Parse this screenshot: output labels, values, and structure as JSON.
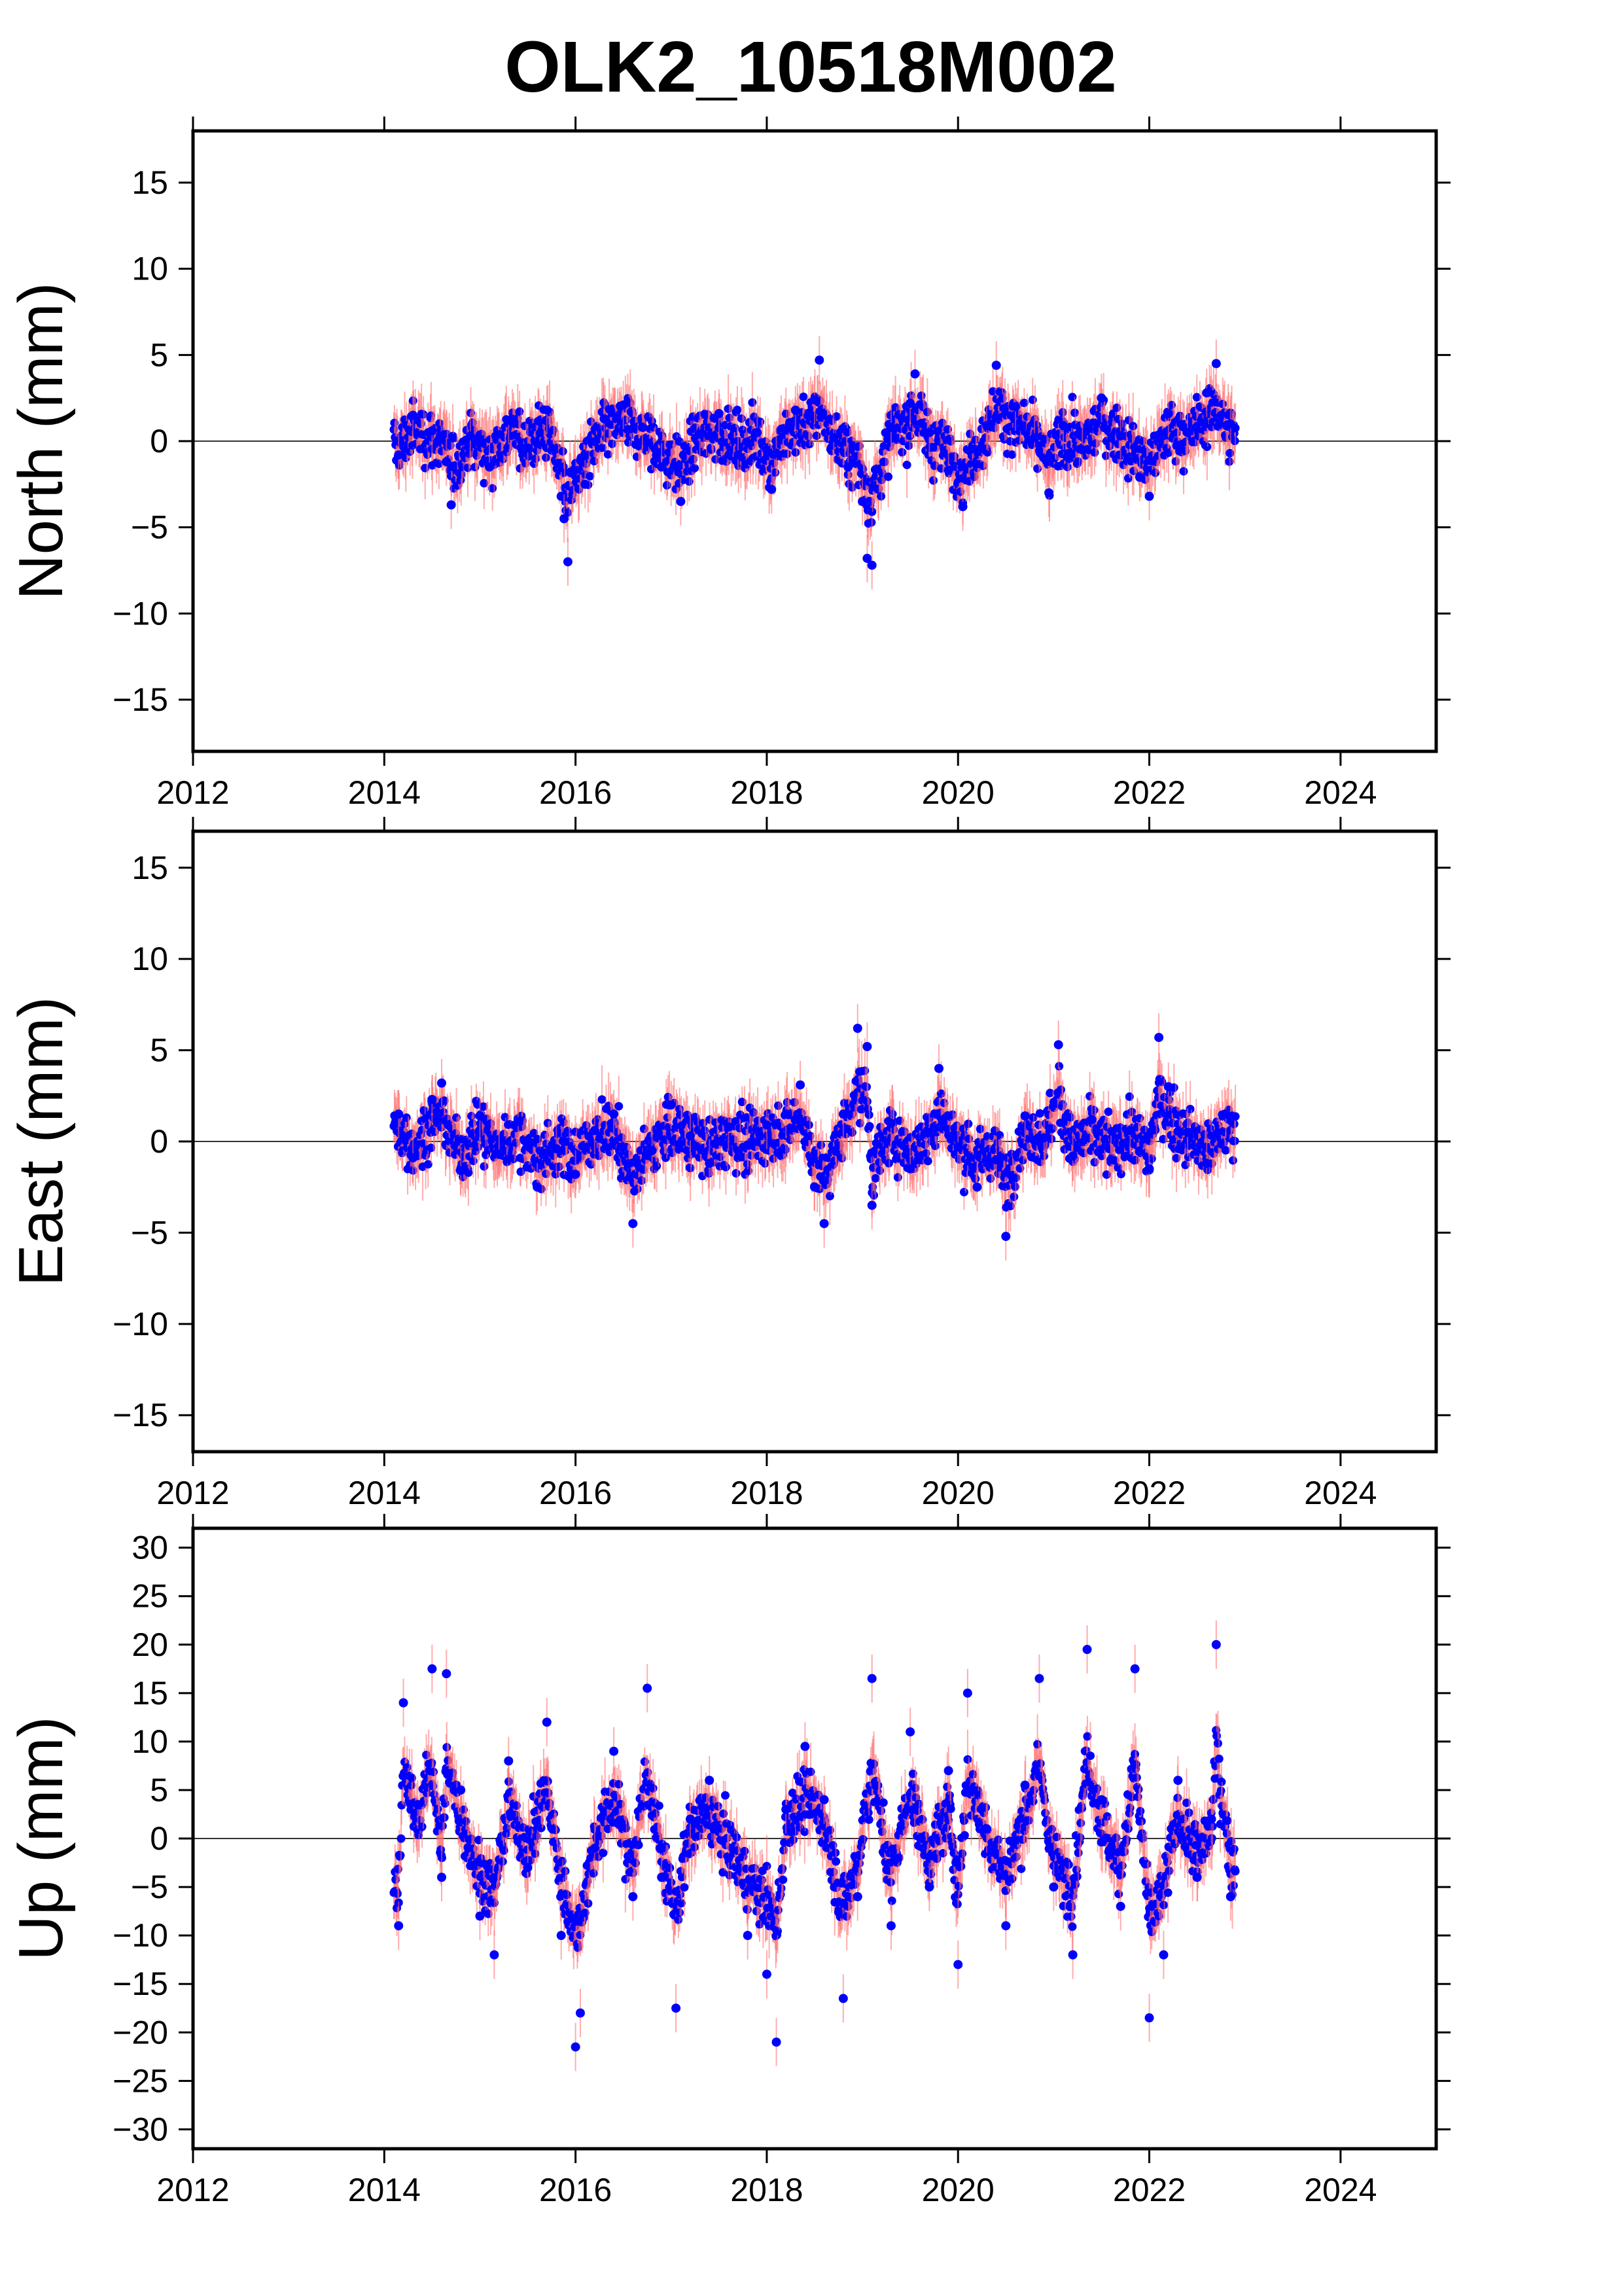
{
  "chart_data": {
    "title": "OLK2_10518M002",
    "type": "scatter",
    "x_ticks": [
      "2012",
      "2014",
      "2016",
      "2018",
      "2020",
      "2022",
      "2024"
    ],
    "xlim": [
      2012,
      2025
    ],
    "data_span": [
      2014.1,
      2022.9
    ],
    "colors": {
      "points": "#0000ff",
      "error_bars": "#ff6a6a",
      "zero_line": "#333333"
    },
    "panels": [
      {
        "ylabel": "North (mm)",
        "ylim": [
          -18,
          18
        ],
        "y_ticks": [
          "15",
          "10",
          "5",
          "0",
          "−5",
          "−10",
          "−15"
        ],
        "y_tick_values": [
          15,
          10,
          5,
          0,
          -5,
          -10,
          -15
        ],
        "points": [
          [
            2014.15,
            -0.8
          ],
          [
            2014.3,
            1.5
          ],
          [
            2014.5,
            0.6
          ],
          [
            2014.65,
            -1.2
          ],
          [
            2014.7,
            -3.7
          ],
          [
            2014.9,
            0.3
          ],
          [
            2015.1,
            -1.5
          ],
          [
            2015.3,
            1.2
          ],
          [
            2015.5,
            -0.4
          ],
          [
            2015.7,
            1.8
          ],
          [
            2015.85,
            -3.2
          ],
          [
            2015.88,
            -4.5
          ],
          [
            2015.92,
            -7.0
          ],
          [
            2016.1,
            -2.5
          ],
          [
            2016.3,
            1.3
          ],
          [
            2016.5,
            2.1
          ],
          [
            2016.7,
            0.8
          ],
          [
            2016.9,
            -1.5
          ],
          [
            2017.1,
            -3.5
          ],
          [
            2017.3,
            0.4
          ],
          [
            2017.5,
            1.6
          ],
          [
            2017.7,
            -0.8
          ],
          [
            2017.9,
            0.5
          ],
          [
            2018.05,
            -2.8
          ],
          [
            2018.1,
            -0.7
          ],
          [
            2018.3,
            1.8
          ],
          [
            2018.5,
            2.4
          ],
          [
            2018.55,
            4.7
          ],
          [
            2018.7,
            0.2
          ],
          [
            2018.85,
            -1.5
          ],
          [
            2019.0,
            -3.5
          ],
          [
            2019.05,
            -6.8
          ],
          [
            2019.1,
            -7.2
          ],
          [
            2019.3,
            0.8
          ],
          [
            2019.5,
            2.2
          ],
          [
            2019.55,
            3.9
          ],
          [
            2019.7,
            0.5
          ],
          [
            2019.9,
            -1.7
          ],
          [
            2020.05,
            -3.8
          ],
          [
            2020.3,
            0.9
          ],
          [
            2020.4,
            4.4
          ],
          [
            2020.6,
            2.0
          ],
          [
            2020.8,
            0.2
          ],
          [
            2020.95,
            -3.0
          ],
          [
            2021.1,
            0.9
          ],
          [
            2021.3,
            -0.5
          ],
          [
            2021.5,
            2.5
          ],
          [
            2021.7,
            0.3
          ],
          [
            2021.9,
            -2.1
          ],
          [
            2022.0,
            -3.2
          ],
          [
            2022.2,
            1.6
          ],
          [
            2022.4,
            0.5
          ],
          [
            2022.6,
            2.8
          ],
          [
            2022.7,
            4.5
          ],
          [
            2022.85,
            1.0
          ]
        ]
      },
      {
        "ylabel": "East (mm)",
        "ylim": [
          -17,
          17
        ],
        "y_ticks": [
          "15",
          "10",
          "5",
          "0",
          "−5",
          "−10",
          "−15"
        ],
        "y_tick_values": [
          15,
          10,
          5,
          0,
          -5,
          -10,
          -15
        ],
        "points": [
          [
            2014.15,
            1.5
          ],
          [
            2014.3,
            -0.9
          ],
          [
            2014.5,
            2.3
          ],
          [
            2014.6,
            3.2
          ],
          [
            2014.8,
            -1.6
          ],
          [
            2015.0,
            1.4
          ],
          [
            2015.2,
            -0.7
          ],
          [
            2015.4,
            1.1
          ],
          [
            2015.6,
            -2.5
          ],
          [
            2015.8,
            -0.4
          ],
          [
            2016.0,
            -1.8
          ],
          [
            2016.2,
            0.6
          ],
          [
            2016.4,
            1.5
          ],
          [
            2016.6,
            -4.5
          ],
          [
            2016.8,
            -0.5
          ],
          [
            2017.0,
            2.0
          ],
          [
            2017.2,
            0.3
          ],
          [
            2017.4,
            -1.2
          ],
          [
            2017.6,
            0.8
          ],
          [
            2017.8,
            -0.2
          ],
          [
            2018.0,
            0.9
          ],
          [
            2018.2,
            1.5
          ],
          [
            2018.35,
            3.1
          ],
          [
            2018.5,
            -2.5
          ],
          [
            2018.6,
            -4.5
          ],
          [
            2018.8,
            1.5
          ],
          [
            2018.95,
            6.2
          ],
          [
            2019.05,
            5.2
          ],
          [
            2019.1,
            -3.5
          ],
          [
            2019.3,
            1.0
          ],
          [
            2019.5,
            -1.5
          ],
          [
            2019.7,
            0.5
          ],
          [
            2019.8,
            4.0
          ],
          [
            2020.0,
            -0.3
          ],
          [
            2020.2,
            -2.5
          ],
          [
            2020.4,
            -1.0
          ],
          [
            2020.5,
            -5.2
          ],
          [
            2020.7,
            1.4
          ],
          [
            2020.9,
            0.2
          ],
          [
            2021.05,
            5.3
          ],
          [
            2021.2,
            -0.8
          ],
          [
            2021.4,
            1.2
          ],
          [
            2021.6,
            -1.0
          ],
          [
            2021.8,
            0.6
          ],
          [
            2022.0,
            -1.5
          ],
          [
            2022.1,
            5.7
          ],
          [
            2022.2,
            3.0
          ],
          [
            2022.4,
            0.5
          ],
          [
            2022.6,
            -1.2
          ],
          [
            2022.8,
            1.5
          ]
        ]
      },
      {
        "ylabel": "Up (mm)",
        "ylim": [
          -32,
          32
        ],
        "y_ticks": [
          "30",
          "25",
          "20",
          "15",
          "10",
          "5",
          "0",
          "−5",
          "−10",
          "−15",
          "−20",
          "−25",
          "−30"
        ],
        "y_tick_values": [
          30,
          25,
          20,
          15,
          10,
          5,
          0,
          -5,
          -10,
          -15,
          -20,
          -25,
          -30
        ],
        "points": [
          [
            2014.15,
            -9.0
          ],
          [
            2014.2,
            14.0
          ],
          [
            2014.35,
            3.5
          ],
          [
            2014.5,
            17.5
          ],
          [
            2014.6,
            -4.0
          ],
          [
            2014.65,
            17.0
          ],
          [
            2014.8,
            5.0
          ],
          [
            2015.0,
            -8.0
          ],
          [
            2015.15,
            -12.0
          ],
          [
            2015.3,
            8.0
          ],
          [
            2015.5,
            -3.0
          ],
          [
            2015.7,
            12.0
          ],
          [
            2015.85,
            -10.0
          ],
          [
            2016.0,
            -21.5
          ],
          [
            2016.05,
            -18.0
          ],
          [
            2016.2,
            -1.0
          ],
          [
            2016.4,
            9.0
          ],
          [
            2016.6,
            -6.0
          ],
          [
            2016.75,
            15.5
          ],
          [
            2016.9,
            -4.0
          ],
          [
            2017.05,
            -17.5
          ],
          [
            2017.2,
            2.0
          ],
          [
            2017.4,
            6.0
          ],
          [
            2017.6,
            -2.0
          ],
          [
            2017.8,
            -10.0
          ],
          [
            2018.0,
            -14.0
          ],
          [
            2018.1,
            -21.0
          ],
          [
            2018.2,
            3.0
          ],
          [
            2018.4,
            9.5
          ],
          [
            2018.6,
            4.0
          ],
          [
            2018.8,
            -16.5
          ],
          [
            2018.95,
            -6.0
          ],
          [
            2019.1,
            16.5
          ],
          [
            2019.3,
            -9.0
          ],
          [
            2019.5,
            11.0
          ],
          [
            2019.7,
            -5.0
          ],
          [
            2019.9,
            7.0
          ],
          [
            2020.0,
            -13.0
          ],
          [
            2020.1,
            15.0
          ],
          [
            2020.3,
            1.0
          ],
          [
            2020.5,
            -9.0
          ],
          [
            2020.7,
            5.5
          ],
          [
            2020.85,
            16.5
          ],
          [
            2021.0,
            -5.0
          ],
          [
            2021.2,
            -12.0
          ],
          [
            2021.35,
            19.5
          ],
          [
            2021.5,
            4.0
          ],
          [
            2021.7,
            -7.0
          ],
          [
            2021.85,
            17.5
          ],
          [
            2022.0,
            -18.5
          ],
          [
            2022.15,
            -12.0
          ],
          [
            2022.3,
            6.0
          ],
          [
            2022.5,
            -4.0
          ],
          [
            2022.65,
            2.0
          ],
          [
            2022.7,
            20.0
          ],
          [
            2022.85,
            -6.0
          ]
        ]
      }
    ]
  }
}
